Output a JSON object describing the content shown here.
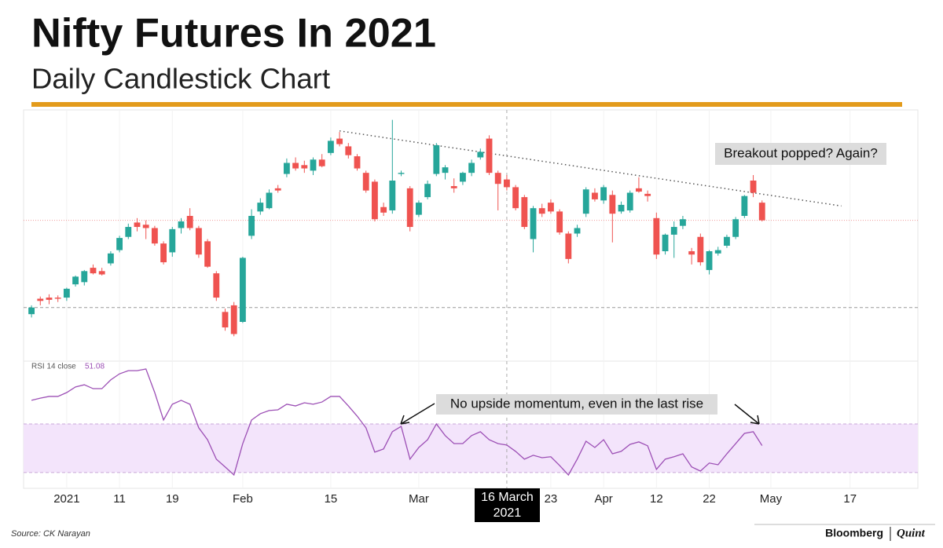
{
  "header": {
    "title": "Nifty Futures In 2021",
    "subtitle": "Daily Candlestick Chart"
  },
  "chart_data": [
    {
      "type": "candlestick",
      "x": [
        0,
        1,
        2,
        3,
        4,
        5,
        6,
        7,
        8,
        9,
        10,
        11,
        12,
        13,
        14,
        15,
        16,
        17,
        18,
        19,
        20,
        21,
        22,
        23,
        24,
        25,
        26,
        27,
        28,
        29,
        30,
        31,
        32,
        33,
        34,
        35,
        36,
        37,
        38,
        39,
        40,
        41,
        42,
        43,
        44,
        45,
        46,
        47,
        48,
        49,
        50,
        51,
        52,
        53,
        54,
        55,
        56,
        57,
        58,
        59,
        60,
        61,
        62,
        63,
        64,
        65,
        66,
        67,
        68,
        69,
        70,
        71,
        72,
        73,
        74,
        75,
        76,
        77,
        78,
        79,
        80,
        81,
        82,
        83
      ],
      "open": [
        13780,
        13920,
        13930,
        13930,
        13930,
        14050,
        14070,
        14200,
        14170,
        14240,
        14360,
        14480,
        14610,
        14590,
        14560,
        14420,
        14340,
        14560,
        14670,
        14560,
        14440,
        14150,
        13800,
        13860,
        13710,
        14490,
        14710,
        14740,
        14920,
        15050,
        15150,
        15130,
        15080,
        15180,
        15240,
        15370,
        15300,
        15210,
        15060,
        14980,
        14750,
        14720,
        15050,
        14920,
        14680,
        14840,
        15050,
        15060,
        14940,
        14980,
        15060,
        15200,
        15370,
        15060,
        15000,
        14930,
        14840,
        14460,
        14740,
        14790,
        14710,
        14510,
        14510,
        14690,
        14880,
        14810,
        14860,
        14710,
        14720,
        14920,
        14870,
        14650,
        14350,
        14500,
        14580,
        14350,
        14480,
        14180,
        14330,
        14400,
        14480,
        14670,
        14990,
        14790
      ],
      "high": [
        13860,
        13940,
        13960,
        13950,
        14020,
        14130,
        14180,
        14230,
        14200,
        14350,
        14490,
        14600,
        14650,
        14630,
        14580,
        14440,
        14570,
        14650,
        14740,
        14580,
        14460,
        14170,
        13830,
        13890,
        14300,
        14730,
        14830,
        14910,
        14950,
        15190,
        15200,
        15170,
        15200,
        15230,
        15380,
        15430,
        15330,
        15230,
        15080,
        15000,
        14790,
        15540,
        15080,
        14940,
        14810,
        14990,
        15330,
        15130,
        15010,
        15070,
        15180,
        15280,
        15400,
        15080,
        15040,
        14950,
        14860,
        14760,
        14780,
        14820,
        14730,
        14530,
        14590,
        14930,
        14920,
        14950,
        14900,
        14800,
        14900,
        15020,
        14900,
        14700,
        14510,
        14620,
        14670,
        14380,
        14510,
        14360,
        14390,
        14500,
        14660,
        14860,
        15040,
        14810
      ],
      "low": [
        13750,
        13860,
        13870,
        13890,
        13900,
        14030,
        14040,
        14140,
        14130,
        14220,
        14340,
        14460,
        14530,
        14460,
        14400,
        14230,
        14300,
        14510,
        14540,
        14290,
        14200,
        13900,
        13630,
        13580,
        13700,
        14460,
        14680,
        14730,
        14880,
        15020,
        15080,
        15060,
        15040,
        15110,
        15220,
        15300,
        15190,
        15080,
        14880,
        14620,
        14670,
        14690,
        15030,
        14530,
        14660,
        14820,
        15030,
        15000,
        14880,
        14950,
        15030,
        15180,
        15040,
        14720,
        14900,
        14720,
        14550,
        14340,
        14660,
        14690,
        14500,
        14240,
        14480,
        14660,
        14800,
        14780,
        14430,
        14690,
        14700,
        14880,
        14800,
        14280,
        14320,
        14290,
        14550,
        14230,
        14220,
        14140,
        14310,
        14380,
        14460,
        14650,
        14840,
        14620
      ],
      "close": [
        13840,
        13900,
        13910,
        13920,
        14010,
        14120,
        14170,
        14150,
        14140,
        14330,
        14470,
        14570,
        14570,
        14560,
        14420,
        14250,
        14550,
        14620,
        14560,
        14320,
        14210,
        13930,
        13660,
        13600,
        14290,
        14670,
        14790,
        14880,
        14900,
        15150,
        15100,
        15100,
        15180,
        15120,
        15350,
        15320,
        15220,
        15100,
        14900,
        14640,
        14700,
        14990,
        15060,
        14570,
        14790,
        14960,
        15310,
        15110,
        14920,
        15060,
        15150,
        15250,
        15060,
        14960,
        14930,
        14740,
        14570,
        14740,
        14690,
        14710,
        14520,
        14280,
        14560,
        14910,
        14820,
        14930,
        14690,
        14770,
        14880,
        14890,
        14850,
        14320,
        14500,
        14570,
        14640,
        14320,
        14250,
        14350,
        14360,
        14480,
        14640,
        14850,
        14880,
        14630
      ],
      "up_color": "#26a69a",
      "down_color": "#ef5350",
      "xlim": [
        -0.9,
        100.7
      ],
      "ylim": [
        13390,
        15630
      ],
      "xticks": [
        {
          "value": 4,
          "label": "2021"
        },
        {
          "value": 10,
          "label": "11"
        },
        {
          "value": 16,
          "label": "19"
        },
        {
          "value": 24,
          "label": "Feb"
        },
        {
          "value": 34,
          "label": "15"
        },
        {
          "value": 44,
          "label": "Mar"
        },
        {
          "value": 59,
          "label": "23"
        },
        {
          "value": 65,
          "label": "Apr"
        },
        {
          "value": 71,
          "label": "12"
        },
        {
          "value": 77,
          "label": "22"
        },
        {
          "value": 84,
          "label": "May"
        },
        {
          "value": 93,
          "label": "17"
        }
      ],
      "reference_lines": [
        13840
      ],
      "trendline": {
        "x": [
          35,
          92
        ],
        "y": [
          15440,
          14760
        ]
      },
      "crosshair": {
        "text": "16 March 2021",
        "x": 54
      },
      "annotations": [
        {
          "text": "Breakout popped? Again?"
        }
      ]
    },
    {
      "type": "line",
      "name": "RSI 14 close",
      "color": "#9c4fb5",
      "values": [
        69.7,
        70.6,
        71.3,
        71.3,
        72.9,
        75.2,
        76.1,
        74.5,
        74.5,
        78.1,
        80.6,
        81.9,
        81.9,
        82.6,
        72.9,
        61.6,
        68.1,
        69.7,
        68.1,
        58.4,
        53.5,
        45.5,
        42.3,
        39.0,
        51.9,
        61.6,
        64.2,
        65.5,
        65.8,
        68.1,
        67.4,
        68.7,
        68.1,
        69.0,
        71.3,
        71.3,
        67.4,
        63.2,
        58.4,
        48.4,
        49.7,
        56.8,
        59.0,
        45.5,
        50.3,
        53.5,
        60.0,
        55.2,
        51.9,
        51.9,
        55.2,
        56.8,
        53.5,
        51.9,
        51.3,
        48.7,
        45.5,
        47.1,
        46.1,
        46.5,
        42.9,
        39.0,
        45.5,
        52.9,
        50.3,
        53.5,
        47.7,
        48.7,
        51.6,
        52.6,
        51.0,
        41.3,
        45.5,
        46.5,
        47.7,
        42.3,
        40.6,
        43.9,
        43.2,
        47.7,
        51.9,
        56.1,
        56.8,
        51.08
      ],
      "ylim": [
        33.5,
        84.2
      ],
      "bands": [
        40,
        60
      ],
      "band_color": "#f3e4fb",
      "annotations": [
        {
          "text": "No upside momentum, even in the last rise"
        }
      ]
    }
  ],
  "footer": {
    "source": "Source: CK Narayan",
    "brand": "Bloomberg",
    "brand2": "Quint"
  }
}
